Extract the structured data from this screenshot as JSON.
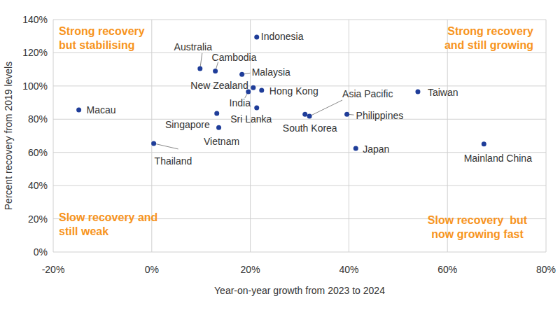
{
  "chart_data": {
    "type": "scatter",
    "x_label": "Year-on-year growth from 2023 to 2024",
    "y_label": "Percent recovery from 2019 levels",
    "labels": [
      "Indonesia",
      "Australia",
      "Cambodia",
      "Malaysia",
      "New Zealand",
      "India",
      "Hong Kong",
      "Sri Lanka",
      "Singapore",
      "Vietnam",
      "Thailand",
      "Macau",
      "Asia Pacific",
      "South Korea",
      "Philippines",
      "Japan",
      "Taiwan",
      "Mainland China"
    ],
    "x": [
      21.3,
      9.8,
      12.9,
      18.3,
      20.6,
      19.6,
      22.3,
      21.3,
      13.2,
      13.6,
      0.4,
      -14.8,
      32,
      31.1,
      39.6,
      41.4,
      54,
      67.4
    ],
    "values": [
      129.5,
      110.5,
      109,
      107,
      99,
      96.6,
      97.4,
      86.9,
      83.5,
      75,
      65.4,
      85.6,
      81.8,
      83,
      83,
      62.4,
      96.6,
      65
    ],
    "color": "#1f3d99",
    "xlim": [
      -20,
      80
    ],
    "xticks": [
      {
        "value": -20,
        "label": "-20%"
      },
      {
        "value": 0,
        "label": "0%"
      },
      {
        "value": 20,
        "label": "20%"
      },
      {
        "value": 40,
        "label": "40%"
      },
      {
        "value": 60,
        "label": "60%"
      },
      {
        "value": 80,
        "label": "80%"
      }
    ],
    "ylim": [
      0,
      140
    ],
    "yticks": [
      {
        "value": 0,
        "label": "0%"
      },
      {
        "value": 20,
        "label": "20%"
      },
      {
        "value": 40,
        "label": "40%"
      },
      {
        "value": 60,
        "label": "60%"
      },
      {
        "value": 80,
        "label": "80%"
      },
      {
        "value": 100,
        "label": "100%"
      },
      {
        "value": 120,
        "label": "120%"
      },
      {
        "value": 140,
        "label": "140%"
      }
    ],
    "grid": true,
    "annotations": [
      "Strong recovery\nbut stabilising",
      "Strong recovery\nand still growing",
      "Slow recovery and\nstill weak",
      "Slow recovery  but\nnow growing fast"
    ]
  }
}
